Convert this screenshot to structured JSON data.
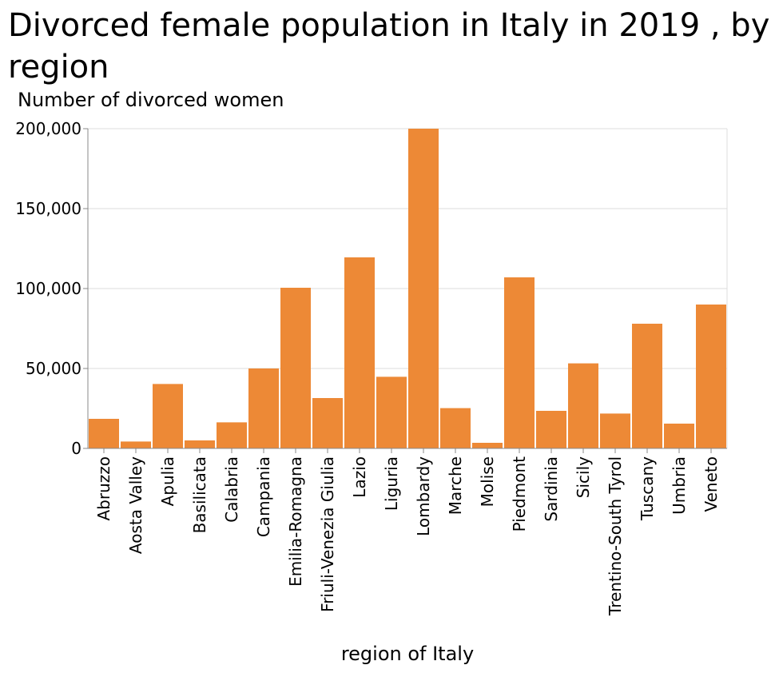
{
  "chart_data": {
    "type": "bar",
    "title": "Divorced female population in Italy in 2019 , by region",
    "xlabel": "region of Italy",
    "ylabel": "Number of divorced women",
    "ylim": [
      0,
      200000
    ],
    "yticks": [
      0,
      50000,
      100000,
      150000,
      200000
    ],
    "ytick_labels": [
      "0",
      "50,000",
      "100,000",
      "150,000",
      "200,000"
    ],
    "grid": true,
    "bar_color": "#ed8936",
    "categories": [
      "Abruzzo",
      "Aosta Valley",
      "Apulia",
      "Basilicata",
      "Calabria",
      "Campania",
      "Emilia-Romagna",
      "Friuli-Venezia Giulia",
      "Lazio",
      "Liguria",
      "Lombardy",
      "Marche",
      "Molise",
      "Piedmont",
      "Sardinia",
      "Sicily",
      "Trentino-South Tyrol",
      "Tuscany",
      "Umbria",
      "Veneto"
    ],
    "values": [
      18500,
      4300,
      40300,
      5000,
      16300,
      50000,
      100500,
      31500,
      119500,
      44800,
      200000,
      25200,
      3500,
      107000,
      23500,
      53200,
      21800,
      78000,
      15500,
      90000
    ]
  }
}
